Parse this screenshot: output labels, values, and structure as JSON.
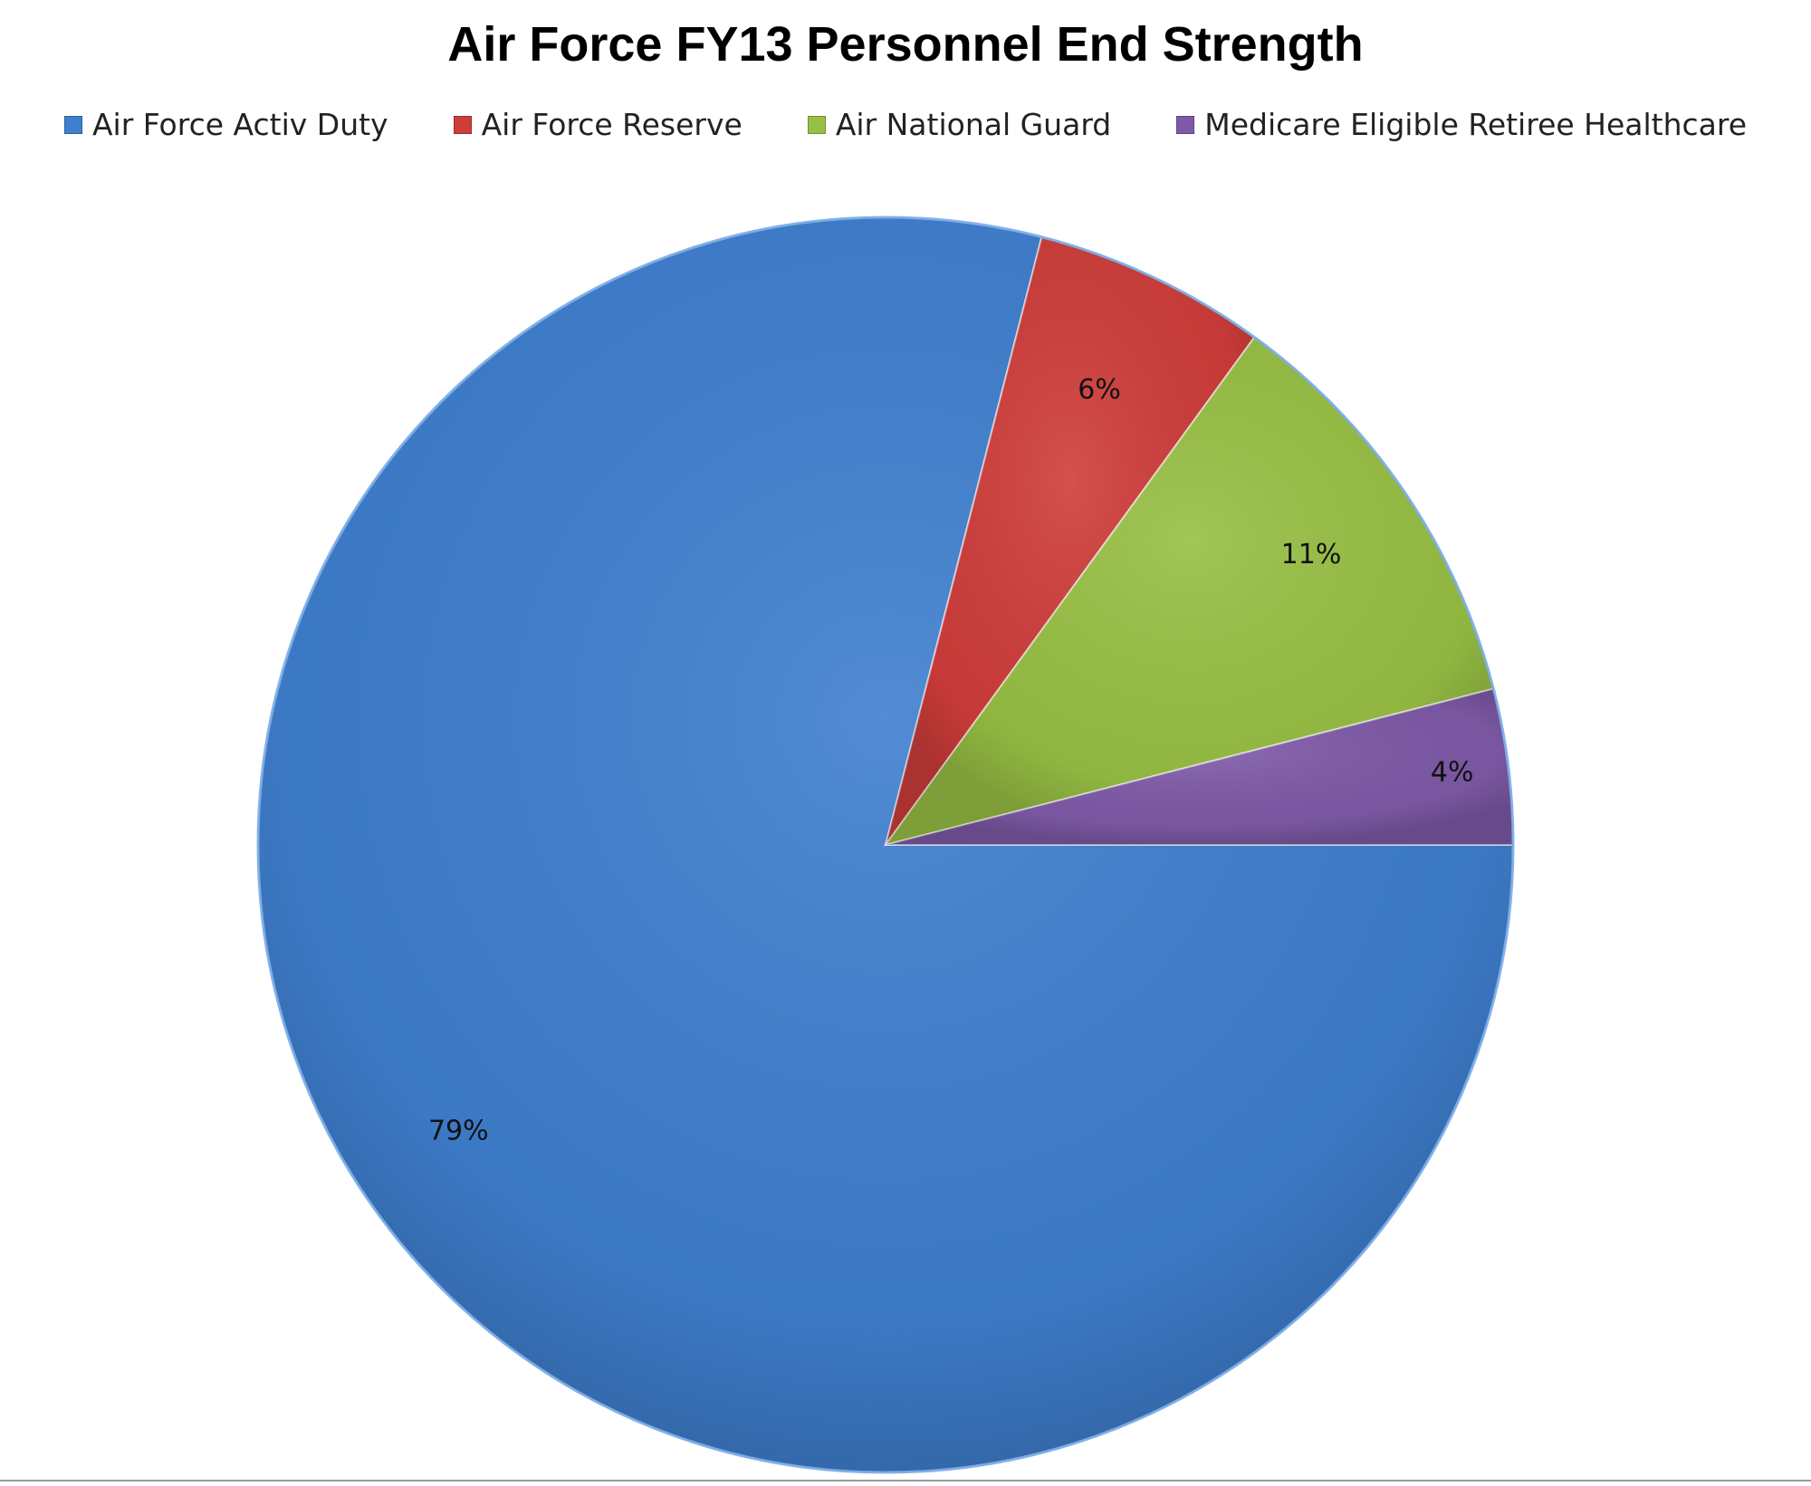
{
  "chart_data": {
    "type": "pie",
    "title": "Air Force FY13 Personnel End Strength",
    "legend_position": "top",
    "slices": [
      {
        "name": "Air Force Activ Duty",
        "value": 79,
        "label": "79%",
        "color": "#3f7fcf"
      },
      {
        "name": "Air Force Reserve",
        "value": 6,
        "label": "6%",
        "color": "#cf3d3a"
      },
      {
        "name": "Air National Guard",
        "value": 11,
        "label": "11%",
        "color": "#98c044"
      },
      {
        "name": "Medicare Eligible Retiree Healthcare",
        "value": 4,
        "label": "4%",
        "color": "#7f5aa8"
      }
    ]
  }
}
